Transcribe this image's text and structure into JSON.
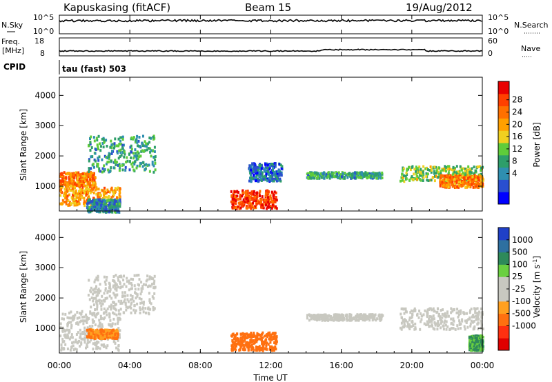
{
  "header": {
    "station": "Kapuskasing (fitACF)",
    "beam": "Beam 15",
    "date": "19/Aug/2012"
  },
  "panels": {
    "nsky_label": "N.Sky",
    "nsky_ticks": [
      "10^5",
      "10^0"
    ],
    "nsearch_label": "N.Search",
    "nsearch_ticks": [
      "10^5",
      "10^0"
    ],
    "freq_label": "Freq.",
    "freq_unit": "[MHz]",
    "freq_ticks": [
      "18",
      "8"
    ],
    "nave_label": "Nave",
    "nave_ticks": [
      "60",
      "0"
    ],
    "cpid_label": "CPID",
    "cpid_value": "tau (fast) 503"
  },
  "power_colorbar": {
    "label": "Power [dB]",
    "ticks": [
      "28",
      "24",
      "20",
      "16",
      "12",
      "8",
      "4"
    ],
    "colors": [
      "#0000ff",
      "#2a4fd0",
      "#2f8fb0",
      "#2e9e6a",
      "#5fcc3a",
      "#f0d020",
      "#ffa000",
      "#ff7000",
      "#ff4000",
      "#e80000"
    ]
  },
  "velocity_colorbar": {
    "label": "Velocity [m s",
    "label_sup": "-1",
    "label_end": "]",
    "ticks": [
      "1000",
      "500",
      "100",
      "25",
      "-25",
      "-100",
      "-500",
      "-1000"
    ],
    "colors": [
      "#2040c8",
      "#2e70a0",
      "#2e8a5a",
      "#6ad040",
      "#c8c8c0",
      "#c8c8c0",
      "#ffa020",
      "#ff7010",
      "#ff3010",
      "#e00000"
    ]
  },
  "chart_data": {
    "type": "heatmap",
    "xlabel": "Time UT",
    "ylabel": "Slant Range [km]",
    "x_ticks": [
      "00:00",
      "04:00",
      "08:00",
      "12:00",
      "16:00",
      "20:00",
      "00:00"
    ],
    "xlim_hours": [
      0,
      24
    ],
    "y_ticks": [
      1000,
      2000,
      3000,
      4000
    ],
    "ylim_km": [
      180,
      4600
    ],
    "power_echoes": [
      {
        "t0": 0.0,
        "t1": 2.0,
        "r0": 1000,
        "r1": 1500,
        "level_db": 22
      },
      {
        "t0": 1.6,
        "t1": 5.4,
        "r0": 1500,
        "r1": 2700,
        "level_db": 10
      },
      {
        "t0": 0.0,
        "t1": 3.4,
        "r0": 400,
        "r1": 1000,
        "level_db": 20
      },
      {
        "t0": 1.5,
        "t1": 3.4,
        "r0": 180,
        "r1": 600,
        "level_db": 8
      },
      {
        "t0": 9.7,
        "t1": 12.3,
        "r0": 300,
        "r1": 900,
        "level_db": 26
      },
      {
        "t0": 10.7,
        "t1": 12.6,
        "r0": 1200,
        "r1": 1800,
        "level_db": 6
      },
      {
        "t0": 14.0,
        "t1": 18.3,
        "r0": 1300,
        "r1": 1500,
        "level_db": 10
      },
      {
        "t0": 19.3,
        "t1": 24.0,
        "r0": 1200,
        "r1": 1700,
        "level_db": 14
      },
      {
        "t0": 21.5,
        "t1": 24.0,
        "r0": 1000,
        "r1": 1400,
        "level_db": 22
      }
    ],
    "velocity_echoes": [
      {
        "t0": 0.0,
        "t1": 3.4,
        "r0": 300,
        "r1": 1600,
        "velocity": 0
      },
      {
        "t0": 1.6,
        "t1": 5.4,
        "r0": 1500,
        "r1": 2800,
        "velocity": 0
      },
      {
        "t0": 1.5,
        "t1": 3.3,
        "r0": 700,
        "r1": 1000,
        "velocity": -100
      },
      {
        "t0": 9.7,
        "t1": 12.3,
        "r0": 300,
        "r1": 900,
        "velocity": -300
      },
      {
        "t0": 14.0,
        "t1": 18.3,
        "r0": 1300,
        "r1": 1500,
        "velocity": 0
      },
      {
        "t0": 19.3,
        "t1": 24.0,
        "r0": 1000,
        "r1": 1700,
        "velocity": 0
      },
      {
        "t0": 23.2,
        "t1": 24.0,
        "r0": 300,
        "r1": 800,
        "velocity": 100
      }
    ]
  }
}
